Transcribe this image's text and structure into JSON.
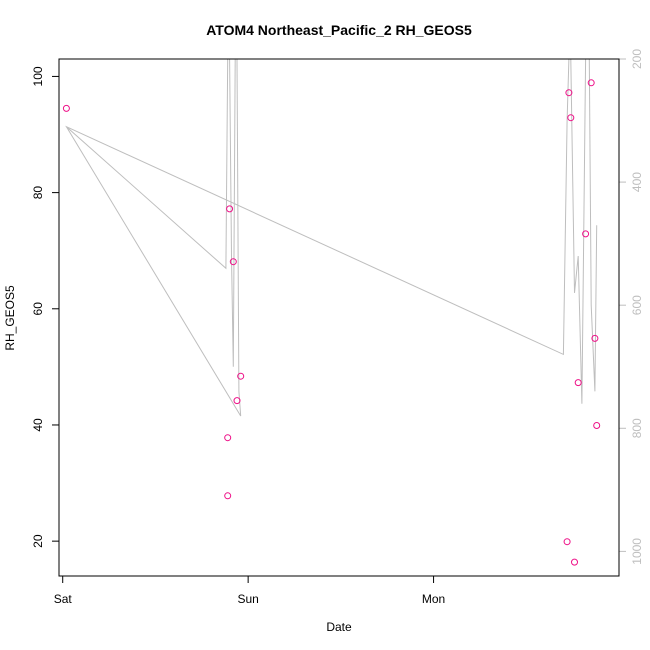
{
  "chart_data": {
    "type": "scatter",
    "title": "ATOM4 Northeast_Pacific_2 RH_GEOS5",
    "xlabel": "Date",
    "ylabel": "RH_GEOS5",
    "x_ticks": [
      "Sat",
      "Sun",
      "Mon"
    ],
    "x_tick_positions": [
      0,
      1,
      2
    ],
    "xlim": [
      -0.02,
      3.0
    ],
    "ylim": [
      14,
      103
    ],
    "y_ticks": [
      20,
      40,
      60,
      80,
      100
    ],
    "y2_ticks": [
      200,
      400,
      600,
      800,
      1000
    ],
    "y2lim": [
      1040,
      200
    ],
    "grid": false,
    "colors": {
      "points": "#ee1188",
      "line": "#bebebe",
      "axis": "#000000",
      "right_axis": "#bebebe"
    },
    "series": [
      {
        "kind": "points",
        "x": [
          0.02,
          0.89,
          0.89,
          0.9,
          0.92,
          0.94,
          0.96,
          2.72,
          2.73,
          2.74,
          2.76,
          2.78,
          2.82,
          2.85,
          2.87,
          2.88
        ],
        "y": [
          94.5,
          37.8,
          27.8,
          77.2,
          68.1,
          44.2,
          48.4,
          19.9,
          97.2,
          92.9,
          16.4,
          47.3,
          72.9,
          98.9,
          54.9,
          39.9
        ]
      },
      {
        "kind": "line",
        "axis": "right",
        "x": [
          0.02,
          0.88,
          0.89,
          0.9,
          0.91,
          0.92,
          0.93,
          0.94,
          0.95,
          0.96,
          0.02,
          2.7,
          2.72,
          2.73,
          2.74,
          2.76,
          2.78,
          2.8,
          2.82,
          2.84,
          2.85,
          2.87,
          2.88
        ],
        "y": [
          310,
          540,
          80,
          80,
          520,
          700,
          80,
          80,
          740,
          780,
          310,
          680,
          300,
          120,
          200,
          580,
          520,
          760,
          80,
          120,
          600,
          740,
          470
        ]
      }
    ]
  }
}
